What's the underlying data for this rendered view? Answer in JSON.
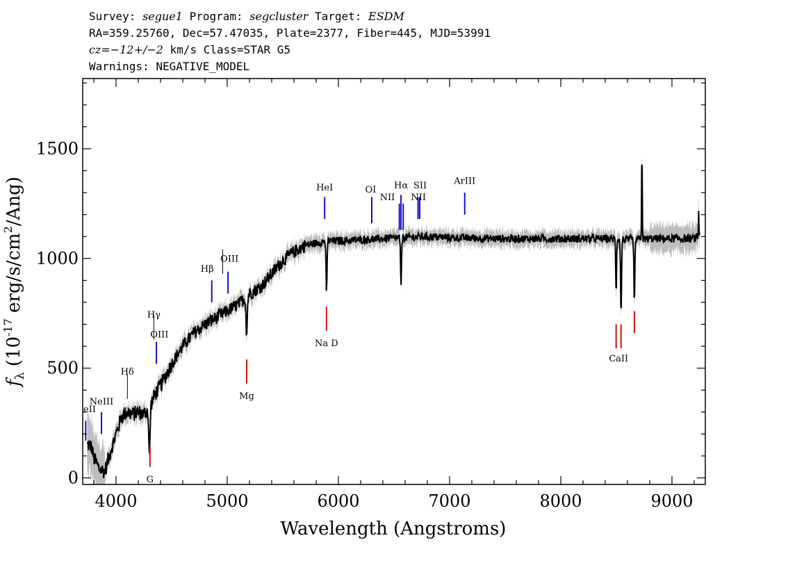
{
  "header": {
    "line1": {
      "survey_label": "Survey: ",
      "survey": "segue1",
      "program_label": " Program: ",
      "program": "segcluster",
      "target_label": " Target: ",
      "target": "ESDM"
    },
    "line2": "RA=359.25760, Dec=57.47035, Plate=2377, Fiber=445, MJD=53991",
    "line3": {
      "cz": "cz=−12+/−2",
      "rest": " km/s Class=STAR G5"
    },
    "line4": "Warnings: NEGATIVE_MODEL"
  },
  "chart_data": {
    "type": "line",
    "xlabel": "Wavelength (Angstroms)",
    "ylabel": "f_λ (10^-17 erg/s/cm^2/Ang)",
    "ylabel_display": {
      "f": "f",
      "lambda": "λ",
      "open": " (10",
      "exp1": "-17",
      "mid": " erg/s/cm",
      "exp2": "2",
      "close": "/Ang)"
    },
    "xlim": [
      3700,
      9300
    ],
    "ylim": [
      -30,
      1820
    ],
    "x_ticks": [
      4000,
      5000,
      6000,
      7000,
      8000,
      9000
    ],
    "x_tick_labels": [
      "4000",
      "5000",
      "6000",
      "7000",
      "8000",
      "9000"
    ],
    "y_ticks": [
      0,
      500,
      1000,
      1500
    ],
    "y_tick_labels": [
      "0",
      "500",
      "1000",
      "1500"
    ],
    "grid": false,
    "spectrum_anchors": {
      "x": [
        3750,
        3780,
        3800,
        3850,
        3900,
        3950,
        4000,
        4050,
        4100,
        4150,
        4200,
        4250,
        4300,
        4350,
        4400,
        4450,
        4500,
        4600,
        4700,
        4800,
        4900,
        5000,
        5100,
        5200,
        5300,
        5400,
        5500,
        5600,
        5700,
        5800,
        5900,
        6000,
        6200,
        6400,
        6600,
        6800,
        7000,
        7500,
        8000,
        8400,
        8600,
        8800,
        9000,
        9200,
        9250
      ],
      "y": [
        150,
        140,
        90,
        40,
        30,
        120,
        200,
        280,
        300,
        290,
        300,
        290,
        320,
        380,
        420,
        470,
        520,
        600,
        660,
        700,
        730,
        760,
        790,
        840,
        870,
        930,
        990,
        1030,
        1060,
        1070,
        1080,
        1080,
        1085,
        1090,
        1095,
        1100,
        1095,
        1090,
        1090,
        1090,
        1085,
        1090,
        1090,
        1090,
        1100
      ]
    },
    "absorption_features": [
      {
        "x": 4300,
        "depth": 230,
        "width": 8
      },
      {
        "x": 5175,
        "depth": 170,
        "width": 8
      },
      {
        "x": 5893,
        "depth": 250,
        "width": 6
      },
      {
        "x": 6563,
        "depth": 230,
        "width": 6
      },
      {
        "x": 8498,
        "depth": 250,
        "width": 5
      },
      {
        "x": 8542,
        "depth": 350,
        "width": 6
      },
      {
        "x": 8662,
        "depth": 300,
        "width": 6
      }
    ],
    "emission_features": [
      {
        "x": 8730,
        "height": 430,
        "width": 4
      },
      {
        "x": 9240,
        "height": 130,
        "width": 3
      }
    ],
    "emission_lines": [
      {
        "label": "NeII",
        "x": 3727,
        "y_top": 260,
        "y_bottom": 170,
        "label_y": 300
      },
      {
        "label": "NeIII",
        "x": 3869,
        "y_top": 300,
        "y_bottom": 200,
        "label_y": 340
      },
      {
        "label": "Hδ",
        "x": 4102,
        "y_top": 360,
        "y_bottom": 360,
        "label_y": 470
      },
      {
        "label": "Hγ",
        "x": 4340,
        "y_top": 630,
        "y_bottom": 630,
        "label_y": 730
      },
      {
        "label": "OIII",
        "x": 4363,
        "y_top": 620,
        "y_bottom": 520,
        "label_y": 640
      },
      {
        "label": "Hβ",
        "x": 4861,
        "y_top": 900,
        "y_bottom": 800,
        "label_y": 940
      },
      {
        "label": "OIII",
        "x": 4959,
        "y_top": 930,
        "y_bottom": 930,
        "label_y": 980
      },
      {
        "label": "OIII",
        "x": 5007,
        "y_top": 940,
        "y_bottom": 840,
        "label_y": 980
      },
      {
        "label": "HeI",
        "x": 5876,
        "y_top": 1280,
        "y_bottom": 1180,
        "label_y": 1310
      },
      {
        "label": "OI",
        "x": 6300,
        "y_top": 1280,
        "y_bottom": 1160,
        "label_y": 1290
      },
      {
        "label": "NII",
        "x": 6548,
        "y_top": 1250,
        "y_bottom": 1130,
        "label_y": 1260
      },
      {
        "label": "Hα",
        "x": 6563,
        "y_top": 1290,
        "y_bottom": 1130,
        "label_y": 1310
      },
      {
        "label": "NII",
        "x": 6583,
        "y_top": 1250,
        "y_bottom": 1130,
        "label_y": 1260
      },
      {
        "label": "SII",
        "x": 6716,
        "y_top": 1280,
        "y_bottom": 1180,
        "label_y": 1300
      },
      {
        "label": "SII",
        "x": 6731,
        "y_top": 1280,
        "y_bottom": 1180,
        "label_y": 1300
      },
      {
        "label": "ArIII",
        "x": 7136,
        "y_top": 1300,
        "y_bottom": 1200,
        "label_y": 1330
      }
    ],
    "emission_line_texts": [
      {
        "label": "NeII",
        "x": 3727,
        "label_y": 300,
        "clip": true
      },
      {
        "label": "NeIII",
        "x": 3869,
        "label_y": 335
      },
      {
        "label": "Hδ",
        "x": 4102,
        "label_y": 470
      },
      {
        "label": "Hγ",
        "x": 4340,
        "label_y": 730
      },
      {
        "label": "OIII",
        "x": 4390,
        "label_y": 640
      },
      {
        "label": "Hβ",
        "x": 4820,
        "label_y": 940
      },
      {
        "label": "OIII",
        "x": 5020,
        "label_y": 985
      },
      {
        "label": "HeI",
        "x": 5876,
        "label_y": 1310
      },
      {
        "label": "OI",
        "x": 6290,
        "label_y": 1300
      },
      {
        "label": "NII",
        "x": 6440,
        "label_y": 1265
      },
      {
        "label": "Hα",
        "x": 6563,
        "label_y": 1320
      },
      {
        "label": "SII",
        "x": 6735,
        "label_y": 1320
      },
      {
        "label": "NII",
        "x": 6720,
        "label_y": 1265
      },
      {
        "label": "ArIII",
        "x": 7136,
        "label_y": 1340
      }
    ],
    "absorption_lines": [
      {
        "label": "G",
        "x": 4305,
        "y_top": 150,
        "y_bottom": 50
      },
      {
        "label": "Mg",
        "x": 5175,
        "y_top": 540,
        "y_bottom": 430
      },
      {
        "label": "Na D",
        "x": 5893,
        "y_top": 780,
        "y_bottom": 670
      },
      {
        "label": "CaII",
        "x": 8498,
        "y_top": 700,
        "y_bottom": 590
      },
      {
        "label": "CaII",
        "x": 8542,
        "y_top": 700,
        "y_bottom": 590
      },
      {
        "label": "CaII",
        "x": 8662,
        "y_top": 760,
        "y_bottom": 660
      }
    ],
    "absorption_line_texts": [
      {
        "label": "G",
        "x": 4305,
        "label_y": -20
      },
      {
        "label": "Mg",
        "x": 5175,
        "label_y": 360
      },
      {
        "label": "Na D",
        "x": 5893,
        "label_y": 600
      },
      {
        "label": "CaII",
        "x": 8520,
        "label_y": 530
      }
    ],
    "colors": {
      "spectrum": "#000000",
      "error_band": "#bdbdbd",
      "emission": "#1010c8",
      "absorption": "#d01010",
      "axes": "#000000"
    }
  }
}
